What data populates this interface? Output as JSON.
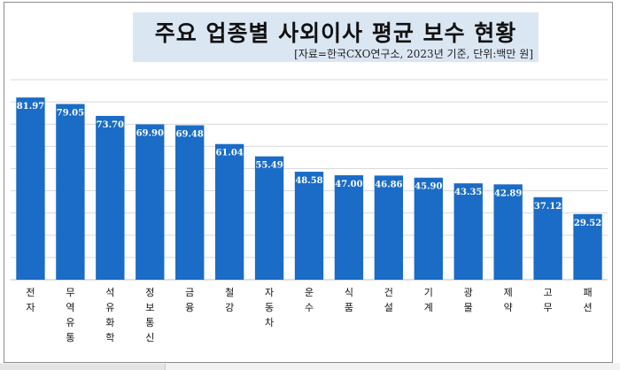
{
  "chart_data": {
    "type": "bar",
    "title": "주요 업종별 사외이사 평균 보수 현황",
    "subtitle": "[자료=한국CXO연구소, 2023년 기준, 단위:백만 원]",
    "categories": [
      "전자",
      "무역유통",
      "석유화학",
      "정보통신",
      "금융",
      "철강",
      "자동차",
      "운수",
      "식품",
      "건설",
      "기계",
      "광물",
      "제약",
      "고무",
      "패션"
    ],
    "values": [
      81.97,
      79.05,
      73.7,
      69.9,
      69.48,
      61.04,
      55.49,
      48.58,
      47.0,
      46.86,
      45.9,
      43.35,
      42.89,
      37.12,
      29.52
    ],
    "value_labels": [
      "81.97",
      "79.05",
      "73.70",
      "69.90",
      "69.48",
      "61.04",
      "55.49",
      "48.58",
      "47.00",
      "46.86",
      "45.90",
      "43.35",
      "42.89",
      "37.12",
      "29.52"
    ],
    "ylim": [
      0,
      90
    ],
    "grid": true,
    "legend": "none",
    "colors": {
      "bar": "#1a6cc6",
      "grid": "#d9d9d9",
      "label": "#ffffff"
    }
  }
}
